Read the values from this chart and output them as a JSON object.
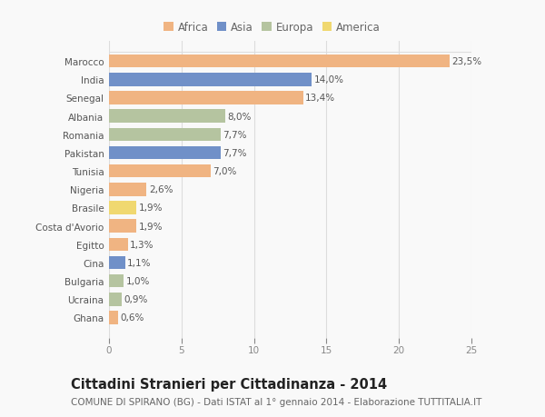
{
  "categories": [
    "Marocco",
    "India",
    "Senegal",
    "Albania",
    "Romania",
    "Pakistan",
    "Tunisia",
    "Nigeria",
    "Brasile",
    "Costa d'Avorio",
    "Egitto",
    "Cina",
    "Bulgaria",
    "Ucraina",
    "Ghana"
  ],
  "values": [
    23.5,
    14.0,
    13.4,
    8.0,
    7.7,
    7.7,
    7.0,
    2.6,
    1.9,
    1.9,
    1.3,
    1.1,
    1.0,
    0.9,
    0.6
  ],
  "labels": [
    "23,5%",
    "14,0%",
    "13,4%",
    "8,0%",
    "7,7%",
    "7,7%",
    "7,0%",
    "2,6%",
    "1,9%",
    "1,9%",
    "1,3%",
    "1,1%",
    "1,0%",
    "0,9%",
    "0,6%"
  ],
  "continents": [
    "Africa",
    "Asia",
    "Africa",
    "Europa",
    "Europa",
    "Asia",
    "Africa",
    "Africa",
    "America",
    "Africa",
    "Africa",
    "Asia",
    "Europa",
    "Europa",
    "Africa"
  ],
  "continent_colors": {
    "Africa": "#F0B482",
    "Asia": "#7090C8",
    "Europa": "#B5C4A0",
    "America": "#F0D870"
  },
  "legend_order": [
    "Africa",
    "Asia",
    "Europa",
    "America"
  ],
  "title": "Cittadini Stranieri per Cittadinanza - 2014",
  "subtitle": "COMUNE DI SPIRANO (BG) - Dati ISTAT al 1° gennaio 2014 - Elaborazione TUTTITALIA.IT",
  "xlim": [
    0,
    25
  ],
  "xticks": [
    0,
    5,
    10,
    15,
    20,
    25
  ],
  "background_color": "#f9f9f9",
  "grid_color": "#dddddd",
  "bar_height": 0.72,
  "title_fontsize": 10.5,
  "subtitle_fontsize": 7.5,
  "label_fontsize": 7.5,
  "tick_fontsize": 7.5,
  "legend_fontsize": 8.5
}
